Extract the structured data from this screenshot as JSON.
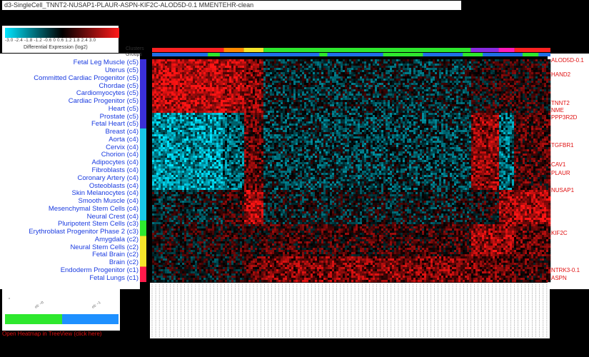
{
  "title": "d3-SingleCell_TNNT2-NUSAP1-PLAUR-ASPN-KIF2C-ALOD5D-0.1 MMENTEHR-clean",
  "legend": {
    "ticks": "-3.0  -2.4  -1.8  -1.2  -0.6   0   0.6   1.2   1.8   2.4   3.0",
    "title": "Differential Expression (log2)",
    "colors": {
      "low": "#00e5ff",
      "mid": "#000000",
      "high": "#ff1a1a"
    }
  },
  "tracks": {
    "clusters_label": "Clusters",
    "groups_label": "Groups"
  },
  "open_link": "Open Heatmap in TreeView (click here)",
  "chart_data": {
    "type": "heatmap",
    "value_range": [
      -3,
      3
    ],
    "row_labels": [
      "Fetal Leg Muscle (c5)",
      "Uterus (c5)",
      "Committed Cardiac Progenitor (c5)",
      "Chordae (c5)",
      "Cardiomyocytes (c5)",
      "Cardiac Progenitor (c5)",
      "Heart (c5)",
      "Prostate (c5)",
      "Fetal Heart (c5)",
      "Breast (c4)",
      "Aorta (c4)",
      "Cervix (c4)",
      "Chorion (c4)",
      "Adipocytes (c4)",
      "Fibroblasts (c4)",
      "Coronary Artery (c4)",
      "Osteoblasts (c4)",
      "Skin Melanocytes (c4)",
      "Smooth Muscle (c4)",
      "Mesenchymal Stem Cells (c4)",
      "Neural Crest (c4)",
      "Pluripotent Stem Cells (c3)",
      "Erythroblast Progenitor Phase 2 (c3)",
      "Amygdala (c2)",
      "Neural Stem Cells (c2)",
      "Fetal Brain (c2)",
      "Brain (c2)",
      "Endoderm Progenitor (c1)",
      "Fetal Lungs (c1)"
    ],
    "row_clusters": [
      "c5",
      "c5",
      "c5",
      "c5",
      "c5",
      "c5",
      "c5",
      "c5",
      "c5",
      "c4",
      "c4",
      "c4",
      "c4",
      "c4",
      "c4",
      "c4",
      "c4",
      "c4",
      "c4",
      "c4",
      "c4",
      "c3",
      "c3",
      "c2",
      "c2",
      "c2",
      "c2",
      "c1",
      "c1"
    ],
    "cluster_colors": {
      "c5": "#3a2fd8",
      "c4": "#18c8e8",
      "c3": "#2ee82e",
      "c2": "#f5e52a",
      "c1": "#ff1a4a"
    },
    "gene_labels": [
      "ALOD5D-0.1",
      "HAND2",
      "TNNT2",
      "NME",
      "PPP3R2D",
      "TGFBR1",
      "CAV1",
      "PLAUR",
      "NUSAP1",
      "KIF2C",
      "NTRK3-0.1",
      "ASPN"
    ],
    "column_clusters": [
      {
        "color": "#ff2222",
        "span": 0.18
      },
      {
        "color": "#ff8a00",
        "span": 0.05
      },
      {
        "color": "#f5e52a",
        "span": 0.05
      },
      {
        "color": "#2ee82e",
        "span": 0.52
      },
      {
        "color": "#8a2be2",
        "span": 0.07
      },
      {
        "color": "#ff1ab8",
        "span": 0.04
      },
      {
        "color": "#ff2222",
        "span": 0.09
      }
    ],
    "column_groups": [
      "#1e6fe8",
      "#2ee82e"
    ],
    "bottom_group_bar": [
      "#2ee82e",
      "#1e90ff"
    ],
    "bottom_group_labels": [
      "c0: ~0",
      "c0: ~1"
    ]
  }
}
